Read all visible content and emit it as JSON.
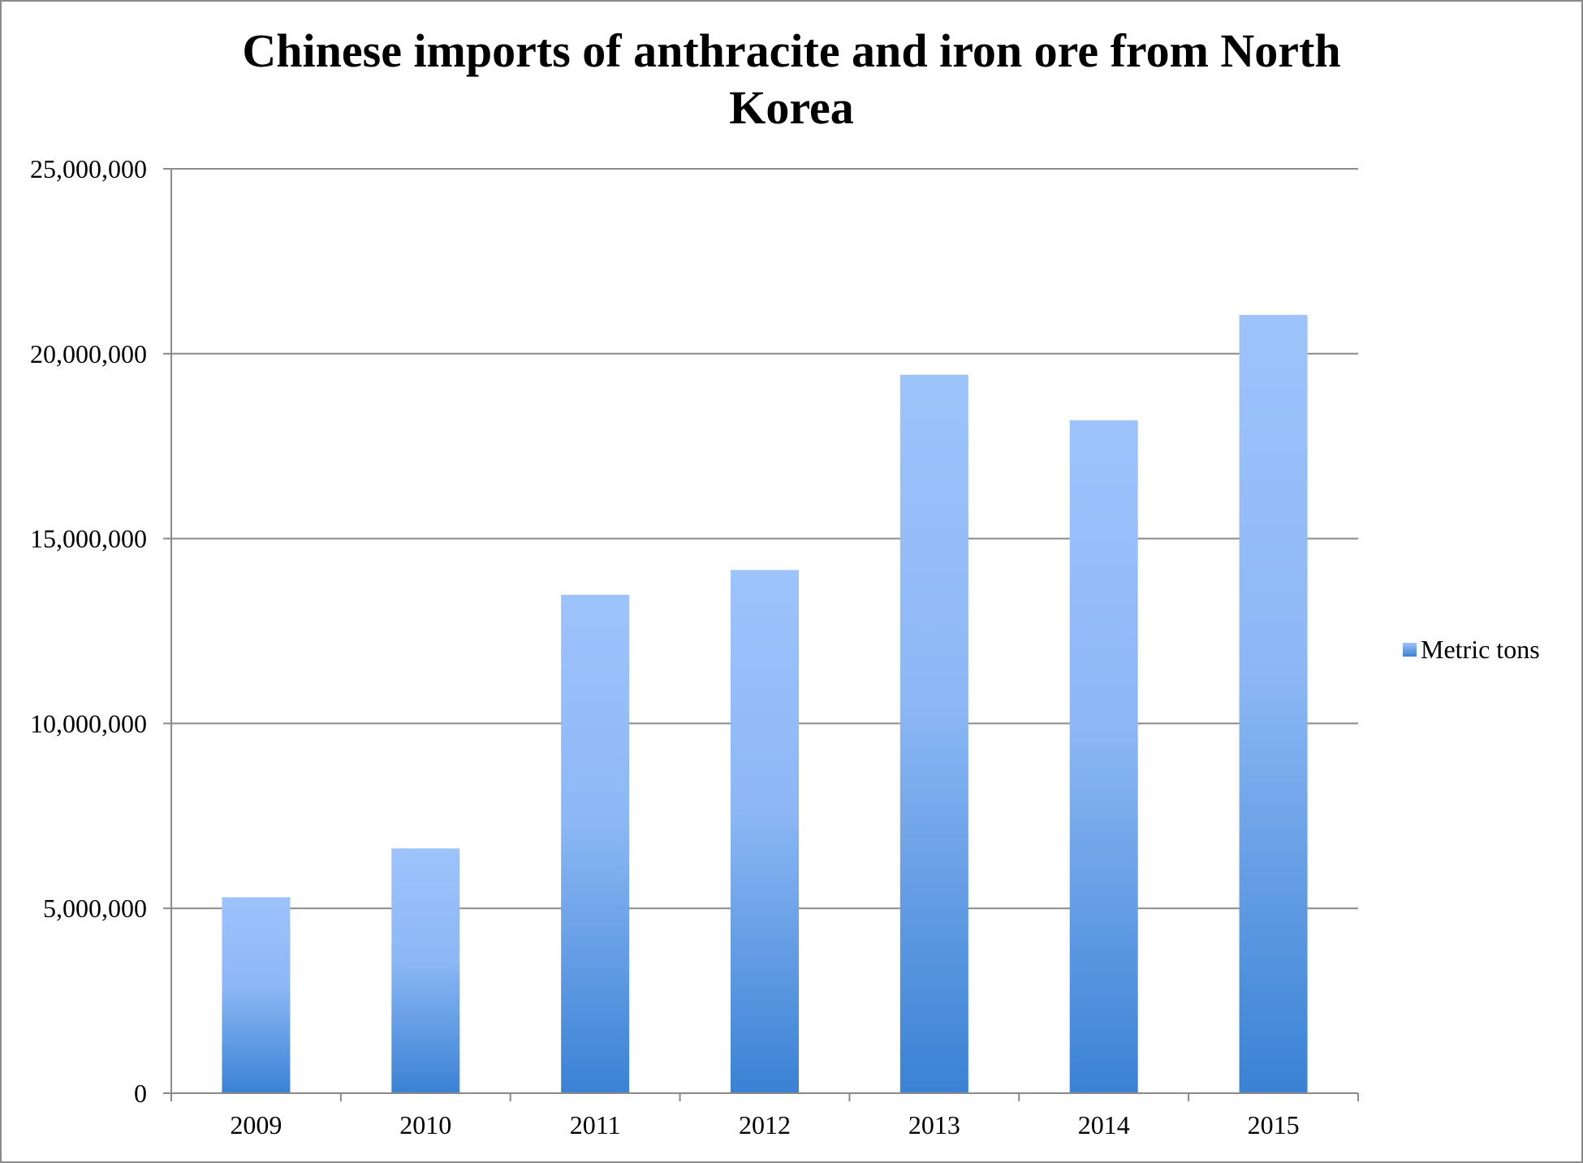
{
  "chart_data": {
    "type": "bar",
    "title_lines": [
      "Chinese imports of anthracite and iron ore from North",
      "Korea"
    ],
    "categories": [
      "2009",
      "2010",
      "2011",
      "2012",
      "2013",
      "2014",
      "2015"
    ],
    "series": [
      {
        "name": "Metric tons",
        "values": [
          5300000,
          6620000,
          13480000,
          14150000,
          19430000,
          18200000,
          21050000
        ]
      }
    ],
    "ylim": [
      0,
      25000000
    ],
    "yticks": [
      0,
      5000000,
      10000000,
      15000000,
      20000000,
      25000000
    ],
    "ytick_labels": [
      "0",
      "5,000,000",
      "10,000,000",
      "15,000,000",
      "20,000,000",
      "25,000,000"
    ],
    "grid": true,
    "legend_position": "right",
    "colors": {
      "bar_top": "#9dc3fb",
      "bar_bottom": "#3a82d4",
      "gridline": "#8a8a8a",
      "axis": "#8a8a8a",
      "frame": "#8a8a8a"
    }
  }
}
